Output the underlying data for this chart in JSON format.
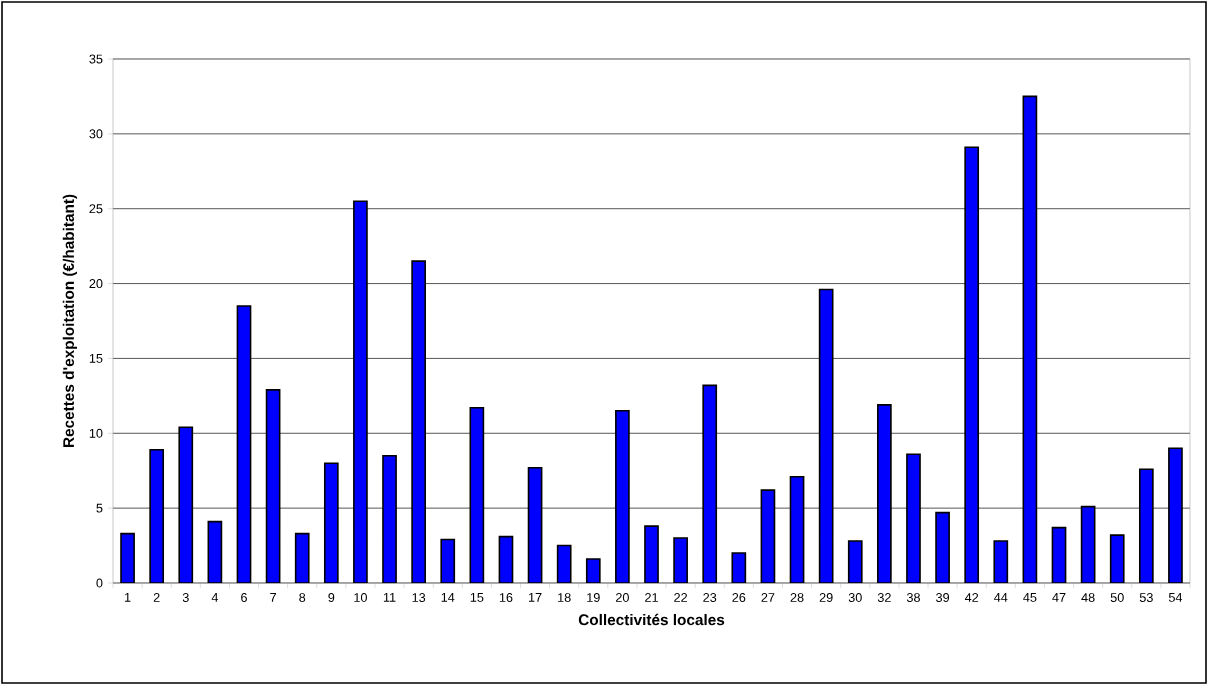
{
  "chart_data": {
    "type": "bar",
    "xlabel": "Collectivités locales",
    "ylabel": "Recettes d'exploitation (€/habitant)",
    "categories": [
      "1",
      "2",
      "3",
      "4",
      "6",
      "7",
      "8",
      "9",
      "10",
      "11",
      "13",
      "14",
      "15",
      "16",
      "17",
      "18",
      "19",
      "20",
      "21",
      "22",
      "23",
      "26",
      "27",
      "28",
      "29",
      "30",
      "32",
      "38",
      "39",
      "42",
      "44",
      "45",
      "47",
      "48",
      "50",
      "53",
      "54"
    ],
    "values": [
      3.3,
      8.9,
      10.4,
      4.1,
      18.5,
      12.9,
      3.3,
      8.0,
      25.5,
      8.5,
      21.5,
      2.9,
      11.7,
      3.1,
      7.7,
      2.5,
      1.6,
      11.5,
      3.8,
      3.0,
      13.2,
      2.0,
      6.2,
      7.1,
      19.6,
      2.8,
      11.9,
      8.6,
      4.7,
      29.1,
      2.8,
      32.5,
      3.7,
      5.1,
      3.2,
      7.6,
      9.0
    ],
    "color": "#0000ff",
    "ylim": [
      0,
      35
    ],
    "yticks": [
      0,
      5,
      10,
      15,
      20,
      25,
      30,
      35
    ],
    "grid": "y"
  }
}
